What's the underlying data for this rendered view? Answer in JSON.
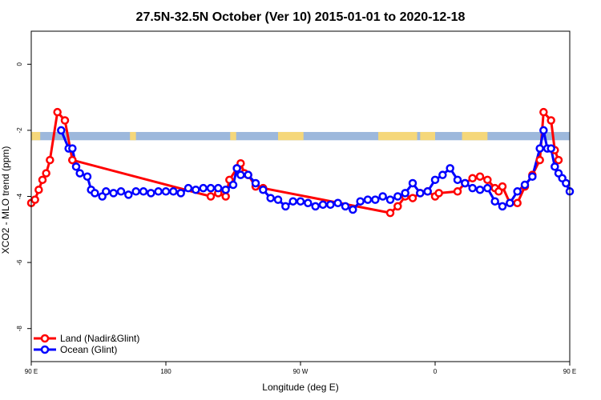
{
  "chart_data": {
    "type": "line",
    "title": "27.5N-32.5N October (Ver 10)   2015-01-01 to 2020-12-18",
    "xlabel": "Longitude (deg E)",
    "ylabel": "XCO2 - MLO trend (ppm)",
    "xlim": [
      90,
      450
    ],
    "ylim": [
      -9,
      1
    ],
    "x_ticks": [
      {
        "value": 90,
        "label": "90 E"
      },
      {
        "value": 180,
        "label": "180"
      },
      {
        "value": 270,
        "label": "90 W"
      },
      {
        "value": 360,
        "label": "0"
      },
      {
        "value": 450,
        "label": "90 E"
      },
      {
        "value": 540,
        "label": "180"
      }
    ],
    "y_ticks": [
      {
        "value": 0,
        "label": "0"
      },
      {
        "value": -2,
        "label": "-2"
      },
      {
        "value": -4,
        "label": "-4"
      },
      {
        "value": -6,
        "label": "-6"
      },
      {
        "value": -8,
        "label": "-8"
      }
    ],
    "legend_position": "bottom-left",
    "map_strip": {
      "y_range": [
        -2.3,
        -2.05
      ],
      "ocean_color": "#9db8dc",
      "land_color": "#f5d77a",
      "land_segments": [
        [
          86,
          96
        ],
        [
          156,
          160
        ],
        [
          223,
          227
        ],
        [
          255,
          272
        ],
        [
          322,
          348
        ],
        [
          350,
          360
        ],
        [
          378,
          395
        ],
        [
          450,
          456
        ],
        [
          516,
          520
        ]
      ]
    },
    "series": [
      {
        "name": "Land (Nadir&Glint)",
        "color": "#ff0000",
        "points": [
          [
            90,
            -4.2
          ],
          [
            92.5,
            -4.1
          ],
          [
            95,
            -3.8
          ],
          [
            97.5,
            -3.5
          ],
          [
            100,
            -3.3
          ],
          [
            102.5,
            -2.9
          ],
          [
            107.5,
            -1.45
          ],
          [
            112.5,
            -1.7
          ],
          [
            117.5,
            -2.9
          ],
          [
            117.5,
            -2.9
          ],
          [
            210,
            -4.0
          ],
          [
            215,
            -3.9
          ],
          [
            220,
            -4.0
          ],
          [
            222.5,
            -3.5
          ],
          [
            227.5,
            -3.15
          ],
          [
            230,
            -3.0
          ],
          [
            232.5,
            -3.3
          ],
          [
            235,
            -3.35
          ],
          [
            240,
            -3.7
          ],
          [
            245,
            -3.75
          ],
          [
            330,
            -4.5
          ],
          [
            335,
            -4.3
          ],
          [
            340,
            -4.0
          ],
          [
            345,
            -4.05
          ],
          [
            350,
            -3.9
          ],
          [
            355,
            -3.85
          ],
          [
            360,
            -4.0
          ],
          [
            362.5,
            -3.9
          ],
          [
            375,
            -3.85
          ],
          [
            380,
            -3.6
          ],
          [
            385,
            -3.45
          ],
          [
            390,
            -3.4
          ],
          [
            395,
            -3.5
          ],
          [
            400,
            -3.75
          ],
          [
            402.5,
            -3.85
          ],
          [
            405,
            -3.7
          ],
          [
            410,
            -4.2
          ],
          [
            415,
            -4.2
          ],
          [
            420,
            -3.7
          ],
          [
            425,
            -3.35
          ],
          [
            430,
            -2.9
          ],
          [
            432.5,
            -1.45
          ],
          [
            437.5,
            -1.7
          ],
          [
            440,
            -2.6
          ],
          [
            442.5,
            -2.9
          ]
        ]
      },
      {
        "name": "Ocean (Glint)",
        "color": "#0000ff",
        "points": [
          [
            110,
            -2.0
          ],
          [
            115,
            -2.55
          ],
          [
            117.5,
            -2.55
          ],
          [
            120,
            -3.1
          ],
          [
            122.5,
            -3.3
          ],
          [
            127.5,
            -3.4
          ],
          [
            130,
            -3.8
          ],
          [
            132.5,
            -3.9
          ],
          [
            137.5,
            -4.0
          ],
          [
            140,
            -3.85
          ],
          [
            145,
            -3.9
          ],
          [
            150,
            -3.85
          ],
          [
            155,
            -3.95
          ],
          [
            160,
            -3.85
          ],
          [
            165,
            -3.85
          ],
          [
            170,
            -3.9
          ],
          [
            175,
            -3.85
          ],
          [
            180,
            -3.85
          ],
          [
            185,
            -3.85
          ],
          [
            190,
            -3.9
          ],
          [
            195,
            -3.75
          ],
          [
            200,
            -3.8
          ],
          [
            205,
            -3.75
          ],
          [
            210,
            -3.75
          ],
          [
            215,
            -3.75
          ],
          [
            220,
            -3.8
          ],
          [
            225,
            -3.65
          ],
          [
            227.5,
            -3.15
          ],
          [
            230,
            -3.35
          ],
          [
            235,
            -3.35
          ],
          [
            240,
            -3.6
          ],
          [
            245,
            -3.8
          ],
          [
            250,
            -4.05
          ],
          [
            255,
            -4.1
          ],
          [
            260,
            -4.3
          ],
          [
            265,
            -4.15
          ],
          [
            270,
            -4.15
          ],
          [
            275,
            -4.2
          ],
          [
            280,
            -4.3
          ],
          [
            285,
            -4.25
          ],
          [
            290,
            -4.25
          ],
          [
            295,
            -4.2
          ],
          [
            300,
            -4.3
          ],
          [
            305,
            -4.4
          ],
          [
            310,
            -4.15
          ],
          [
            315,
            -4.1
          ],
          [
            320,
            -4.1
          ],
          [
            325,
            -4.0
          ],
          [
            330,
            -4.1
          ],
          [
            335,
            -4.0
          ],
          [
            340,
            -3.9
          ],
          [
            345,
            -3.6
          ],
          [
            350,
            -3.9
          ],
          [
            355,
            -3.85
          ],
          [
            360,
            -3.5
          ],
          [
            365,
            -3.35
          ],
          [
            370,
            -3.15
          ],
          [
            375,
            -3.5
          ],
          [
            380,
            -3.6
          ],
          [
            385,
            -3.75
          ],
          [
            390,
            -3.8
          ],
          [
            395,
            -3.75
          ],
          [
            400,
            -4.15
          ],
          [
            405,
            -4.3
          ],
          [
            410,
            -4.2
          ],
          [
            415,
            -3.85
          ],
          [
            420,
            -3.65
          ],
          [
            425,
            -3.4
          ],
          [
            430,
            -2.55
          ],
          [
            432.5,
            -2.0
          ],
          [
            435,
            -2.55
          ],
          [
            437.5,
            -2.55
          ],
          [
            440,
            -3.1
          ],
          [
            442.5,
            -3.3
          ],
          [
            445,
            -3.45
          ],
          [
            447.5,
            -3.6
          ],
          [
            450,
            -3.85
          ]
        ]
      }
    ]
  }
}
